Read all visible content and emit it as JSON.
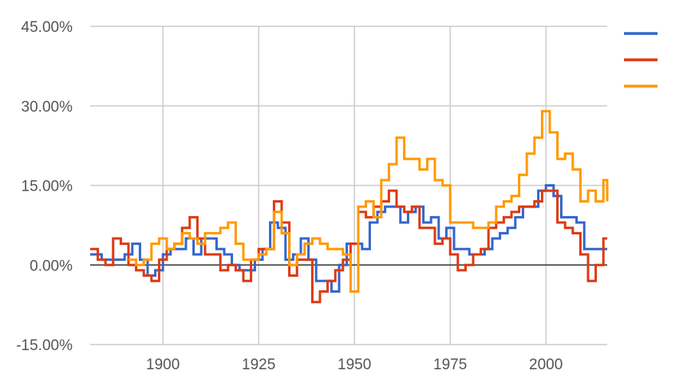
{
  "chart_data": {
    "type": "line",
    "title": "",
    "xlabel": "",
    "ylabel": "",
    "xlim": [
      1881,
      2016
    ],
    "ylim": [
      -15,
      45
    ],
    "grid": true,
    "legend_position": "right",
    "x_ticks": [
      "1900",
      "1925",
      "1950",
      "1975",
      "2000"
    ],
    "x_tick_values": [
      1900,
      1925,
      1950,
      1975,
      2000
    ],
    "y_ticks": [
      "45.00%",
      "30.00%",
      "15.00%",
      "0.00%",
      "-15.00%"
    ],
    "y_tick_values": [
      45,
      30,
      15,
      0,
      -15
    ],
    "series": [
      {
        "name": "",
        "color": "#3366cc",
        "x": [
          1881,
          1884,
          1886,
          1888,
          1890,
          1892,
          1894,
          1896,
          1898,
          1900,
          1902,
          1904,
          1906,
          1908,
          1910,
          1912,
          1914,
          1916,
          1918,
          1920,
          1922,
          1924,
          1926,
          1928,
          1930,
          1932,
          1934,
          1936,
          1938,
          1940,
          1942,
          1944,
          1946,
          1948,
          1950,
          1952,
          1954,
          1956,
          1958,
          1960,
          1962,
          1964,
          1966,
          1968,
          1970,
          1972,
          1974,
          1976,
          1978,
          1980,
          1982,
          1984,
          1986,
          1988,
          1990,
          1992,
          1994,
          1996,
          1998,
          2000,
          2002,
          2004,
          2006,
          2008,
          2010,
          2012,
          2014,
          2016
        ],
        "y": [
          2,
          1,
          1,
          1,
          2,
          4,
          1,
          -2,
          -1,
          2,
          3,
          3,
          5,
          2,
          5,
          5,
          3,
          2,
          0,
          -1,
          -1,
          1,
          3,
          8,
          7,
          1,
          2,
          5,
          1,
          -3,
          -3,
          -5,
          0,
          4,
          4,
          3,
          8,
          10,
          11,
          11,
          8,
          10,
          11,
          8,
          9,
          5,
          7,
          3,
          3,
          2,
          2,
          3,
          5,
          6,
          7,
          9,
          11,
          11,
          14,
          15,
          13,
          9,
          9,
          8,
          3,
          3,
          3,
          3
        ]
      },
      {
        "name": "",
        "color": "#dc3912",
        "x": [
          1881,
          1883,
          1885,
          1887,
          1889,
          1891,
          1893,
          1895,
          1897,
          1899,
          1901,
          1903,
          1905,
          1907,
          1909,
          1911,
          1913,
          1915,
          1917,
          1919,
          1921,
          1923,
          1925,
          1927,
          1929,
          1931,
          1933,
          1935,
          1937,
          1939,
          1941,
          1943,
          1945,
          1947,
          1949,
          1951,
          1953,
          1955,
          1957,
          1959,
          1961,
          1963,
          1965,
          1967,
          1969,
          1971,
          1973,
          1975,
          1977,
          1979,
          1981,
          1983,
          1985,
          1987,
          1989,
          1991,
          1993,
          1995,
          1997,
          1999,
          2001,
          2003,
          2005,
          2007,
          2009,
          2011,
          2013,
          2015,
          2016
        ],
        "y": [
          3,
          1,
          0,
          5,
          4,
          0,
          -1,
          -2,
          -3,
          1,
          3,
          4,
          7,
          9,
          5,
          2,
          2,
          -1,
          0,
          -1,
          -3,
          1,
          3,
          3,
          12,
          8,
          -2,
          1,
          1,
          -7,
          -5,
          -3,
          -1,
          1,
          4,
          10,
          9,
          11,
          12,
          14,
          11,
          10,
          11,
          7,
          7,
          4,
          5,
          2,
          -1,
          0,
          2,
          3,
          7,
          8,
          9,
          10,
          11,
          11,
          12,
          14,
          14,
          8,
          7,
          6,
          2,
          -3,
          0,
          5,
          5
        ]
      },
      {
        "name": "",
        "color": "#ff9900",
        "x": [
          1891,
          1893,
          1895,
          1897,
          1899,
          1901,
          1903,
          1905,
          1907,
          1909,
          1911,
          1913,
          1915,
          1917,
          1919,
          1921,
          1923,
          1925,
          1927,
          1929,
          1931,
          1933,
          1935,
          1937,
          1939,
          1941,
          1943,
          1945,
          1947,
          1949,
          1951,
          1953,
          1955,
          1957,
          1959,
          1961,
          1963,
          1965,
          1967,
          1969,
          1971,
          1973,
          1975,
          1977,
          1979,
          1981,
          1983,
          1985,
          1987,
          1989,
          1991,
          1993,
          1995,
          1997,
          1999,
          2001,
          2003,
          2005,
          2007,
          2009,
          2011,
          2013,
          2015,
          2016
        ],
        "y": [
          1,
          0,
          1,
          4,
          5,
          3,
          4,
          6,
          5,
          4,
          6,
          6,
          7,
          8,
          4,
          1,
          1,
          2,
          3,
          10,
          6,
          0,
          2,
          4,
          5,
          4,
          3,
          3,
          2,
          -5,
          11,
          12,
          9,
          16,
          19,
          24,
          20,
          20,
          18,
          20,
          16,
          15,
          8,
          8,
          8,
          7,
          7,
          8,
          11,
          12,
          13,
          17,
          21,
          24,
          29,
          25,
          20,
          21,
          18,
          12,
          14,
          12,
          16,
          12
        ]
      }
    ]
  }
}
